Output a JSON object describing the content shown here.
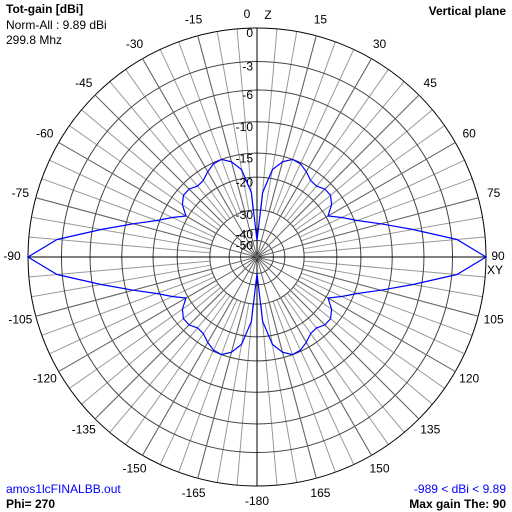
{
  "chart_data": {
    "type": "polar",
    "title": "Tot-gain [dBi]",
    "subtitle": "Norm-All : 9.89 dBi",
    "frequency": "299.8 Mhz",
    "plane": "Vertical plane",
    "file": "amos1lcFINALBB.out",
    "phi": "Phi= 270",
    "range": "-989 < dBi < 9.89",
    "max_gain": "Max gain The: 90",
    "z_label": "Z",
    "xy_label": "XY",
    "rlim": [
      -50,
      0
    ],
    "rticks": [
      0,
      -3,
      -6,
      -10,
      -15,
      -20,
      -30,
      -40,
      -50
    ],
    "theta_ticks": [
      0,
      15,
      30,
      45,
      60,
      75,
      90,
      105,
      120,
      135,
      150,
      165,
      {
        "value": 180,
        "label": "-180"
      },
      {
        "value": 195,
        "label": "-165"
      },
      {
        "value": 210,
        "label": "-150"
      },
      {
        "value": 225,
        "label": "-135"
      },
      {
        "value": 240,
        "label": "-120"
      },
      {
        "value": 255,
        "label": "-105"
      },
      {
        "value": 270,
        "label": "-90"
      },
      {
        "value": 285,
        "label": "-75"
      },
      {
        "value": 300,
        "label": "-60"
      },
      {
        "value": 315,
        "label": "-45"
      },
      {
        "value": 330,
        "label": "-30"
      },
      {
        "value": 345,
        "label": "-15"
      }
    ],
    "grid": true,
    "series": [
      {
        "color": "#0000ff",
        "theta": [
          0,
          5,
          10,
          15,
          20,
          25,
          30,
          35,
          40,
          45,
          50,
          55,
          60,
          65,
          70,
          75,
          80,
          85,
          90,
          95,
          100,
          105,
          110,
          115,
          120,
          125,
          130,
          135,
          140,
          145,
          150,
          155,
          160,
          165,
          170,
          175,
          180,
          185,
          190,
          195,
          200,
          205,
          210,
          215,
          220,
          225,
          230,
          235,
          240,
          245,
          250,
          255,
          260,
          265,
          270,
          275,
          280,
          285,
          290,
          295,
          300,
          305,
          310,
          315,
          320,
          325,
          330,
          335,
          340,
          345,
          350,
          355
        ],
        "values": [
          -50,
          -24,
          -18,
          -16,
          -15,
          -15.2,
          -16,
          -17,
          -17.2,
          -16.5,
          -16.5,
          -17.5,
          -19.5,
          -17,
          -14.5,
          -11,
          -7,
          -2.5,
          0,
          -2.5,
          -7,
          -11,
          -14.5,
          -17,
          -19.5,
          -17.5,
          -16.5,
          -16.5,
          -17.2,
          -17,
          -16,
          -15.2,
          -15,
          -16,
          -18,
          -24,
          -50,
          -24,
          -18,
          -16,
          -15,
          -15.2,
          -16,
          -17,
          -17.2,
          -16.5,
          -16.5,
          -17.5,
          -19.5,
          -17,
          -14.5,
          -11,
          -7,
          -2.5,
          0,
          -2.5,
          -7,
          -11,
          -14.5,
          -17,
          -19.5,
          -17.5,
          -16.5,
          -16.5,
          -17.2,
          -17,
          -16,
          -15.2,
          -15,
          -16,
          -18,
          -24
        ]
      }
    ]
  }
}
